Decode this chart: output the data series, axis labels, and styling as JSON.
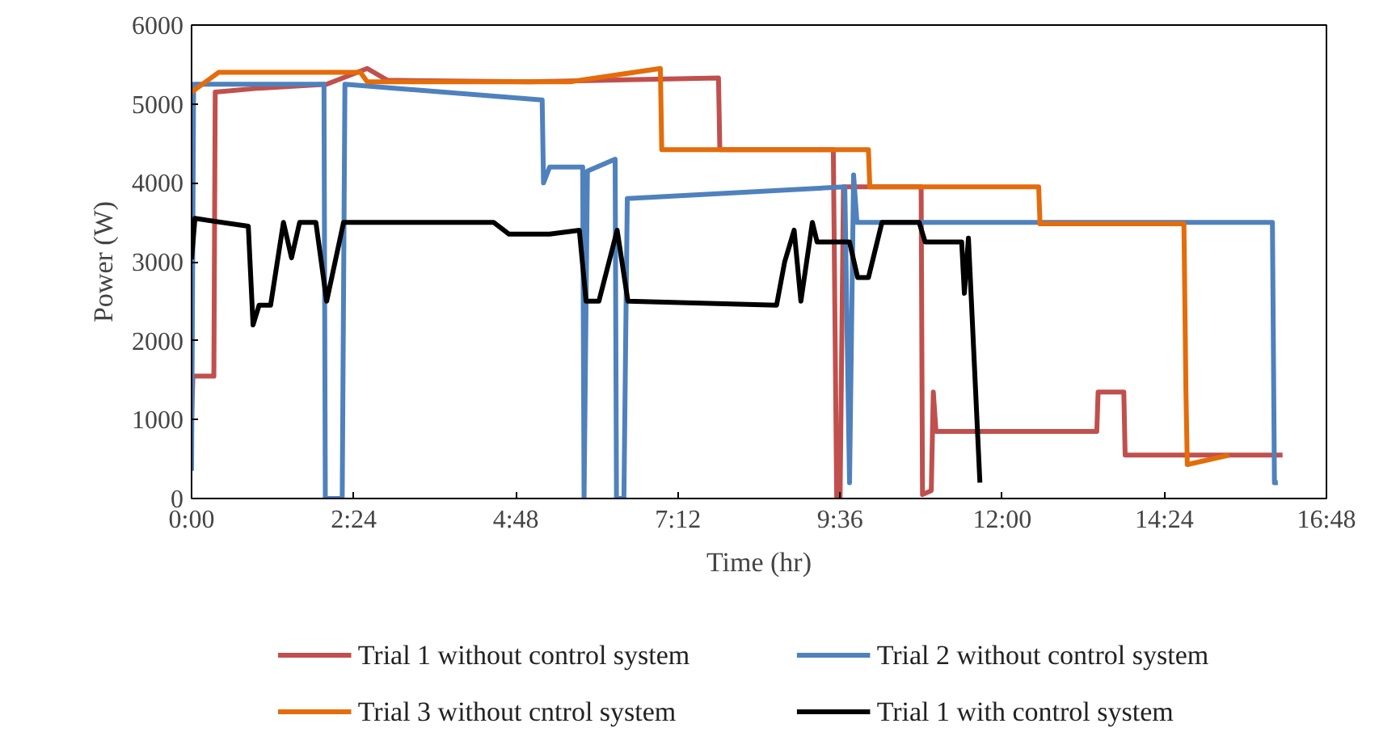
{
  "chart_data": {
    "type": "line",
    "xlabel": "Time (hr)",
    "ylabel": "Power (W)",
    "xlim": [
      0,
      16.8
    ],
    "ylim": [
      0,
      6000
    ],
    "xticks": [
      {
        "value": 0,
        "label": "0:00"
      },
      {
        "value": 2.4,
        "label": "2:24"
      },
      {
        "value": 4.8,
        "label": "4:48"
      },
      {
        "value": 7.2,
        "label": "7:12"
      },
      {
        "value": 9.6,
        "label": "9:36"
      },
      {
        "value": 12,
        "label": "12:00"
      },
      {
        "value": 14.4,
        "label": "14:24"
      },
      {
        "value": 16.8,
        "label": "16:48"
      }
    ],
    "yticks": [
      0,
      1000,
      2000,
      3000,
      4000,
      5000,
      6000
    ],
    "grid": false,
    "legend": "bottom",
    "marker": "none",
    "line_style": "solid",
    "series": [
      {
        "name": "Trial 1 without control system",
        "color": "#c0504d",
        "x": [
          0,
          0.02,
          0.33,
          0.35,
          1,
          2,
          2.6,
          2.9,
          5,
          7.8,
          7.82,
          9.5,
          9.55,
          9.6,
          9.65,
          10.8,
          10.82,
          10.95,
          10.98,
          11.02,
          13.4,
          13.42,
          13.8,
          13.82,
          16.15
        ],
        "values": [
          1000,
          1550,
          1550,
          5150,
          5200,
          5250,
          5450,
          5300,
          5280,
          5330,
          4420,
          4420,
          0,
          0,
          3950,
          3950,
          50,
          100,
          1350,
          850,
          850,
          1350,
          1350,
          550,
          550
        ]
      },
      {
        "name": "Trial 2 without control system",
        "color": "#4f81bd",
        "x": [
          0,
          0.03,
          1.96,
          1.98,
          2.23,
          2.27,
          5.19,
          5.21,
          5.3,
          5.79,
          5.81,
          5.86,
          6.27,
          6.29,
          6.4,
          6.45,
          9.67,
          9.74,
          9.8,
          9.85,
          16.0,
          16.03,
          16.08
        ],
        "values": [
          350,
          5250,
          5250,
          0,
          0,
          5250,
          5050,
          4000,
          4200,
          4200,
          0,
          4150,
          4300,
          0,
          0,
          3800,
          3950,
          200,
          4100,
          3500,
          3500,
          200,
          200
        ]
      },
      {
        "name": "Trial 3 without cntrol system",
        "color": "#e46c0a",
        "x": [
          0,
          0.4,
          2.5,
          2.6,
          5.6,
          6.94,
          6.96,
          10.02,
          10.04,
          12.54,
          12.56,
          14.69,
          14.72,
          14.74,
          15.36
        ],
        "values": [
          5150,
          5400,
          5400,
          5280,
          5280,
          5450,
          4420,
          4420,
          3950,
          3950,
          3480,
          3480,
          1350,
          430,
          550
        ]
      },
      {
        "name": "Trial 1 with control system",
        "color": "#000000",
        "x": [
          0,
          0.05,
          0.84,
          0.91,
          1.0,
          1.17,
          1.36,
          1.48,
          1.6,
          1.84,
          2.0,
          2.25,
          4.47,
          4.7,
          5.3,
          5.74,
          5.84,
          6.03,
          6.3,
          6.46,
          8.66,
          8.78,
          8.92,
          9.02,
          9.19,
          9.26,
          9.74,
          9.86,
          10.02,
          10.22,
          10.77,
          10.86,
          11.4,
          11.44,
          11.5,
          11.67
        ],
        "values": [
          3030,
          3550,
          3450,
          2200,
          2450,
          2450,
          3500,
          3050,
          3500,
          3500,
          2500,
          3500,
          3500,
          3350,
          3350,
          3400,
          2500,
          2500,
          3400,
          2500,
          2450,
          3000,
          3400,
          2500,
          3500,
          3250,
          3250,
          2800,
          2800,
          3500,
          3500,
          3250,
          3250,
          2600,
          3300,
          200
        ]
      }
    ]
  }
}
